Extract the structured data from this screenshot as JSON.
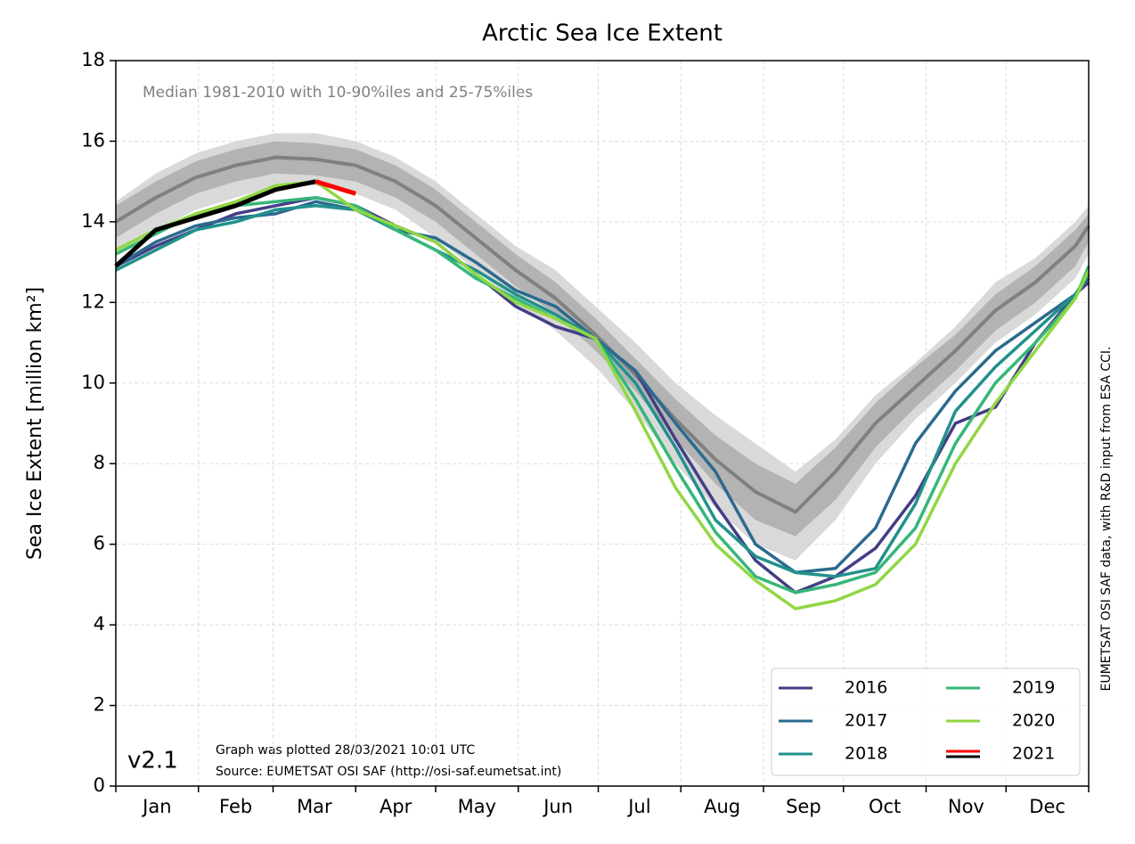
{
  "chart_data": {
    "type": "line",
    "title": "Arctic Sea Ice Extent",
    "subtitle": "Median 1981-2010 with 10-90%iles and 25-75%iles",
    "ylabel": "Sea Ice Extent [million km²]",
    "version": "v2.1",
    "notes": [
      "Graph was plotted 28/03/2021 10:01 UTC",
      "Source: EUMETSAT OSI SAF (http://osi-saf.eumetsat.int)"
    ],
    "credit": "EUMETSAT OSI SAF data, with R&D input from ESA CCI.",
    "x": [
      0,
      15,
      30,
      45,
      60,
      75,
      90,
      105,
      120,
      135,
      150,
      165,
      180,
      195,
      210,
      225,
      240,
      255,
      270,
      285,
      300,
      315,
      330,
      345,
      360,
      365
    ],
    "xlim": [
      0,
      365
    ],
    "xticks": [
      0,
      31,
      59,
      90,
      120,
      151,
      181,
      212,
      243,
      273,
      304,
      334,
      365
    ],
    "categories": [
      "Jan",
      "Feb",
      "Mar",
      "Apr",
      "May",
      "Jun",
      "Jul",
      "Aug",
      "Sep",
      "Oct",
      "Nov",
      "Dec"
    ],
    "ylim": [
      0,
      18
    ],
    "yticks": [
      0,
      2,
      4,
      6,
      8,
      10,
      12,
      14,
      16,
      18
    ],
    "grid": true,
    "legend": "lower right",
    "bands": [
      {
        "color": "#d9d9d9",
        "lower": [
          13.2,
          13.8,
          14.3,
          14.6,
          14.9,
          14.9,
          14.7,
          14.3,
          13.6,
          12.8,
          12.0,
          11.3,
          10.4,
          9.3,
          8.0,
          6.9,
          6.0,
          5.6,
          6.6,
          8.0,
          9.1,
          10.0,
          11.0,
          11.7,
          12.6,
          13.2
        ],
        "upper": [
          14.5,
          15.2,
          15.7,
          16.0,
          16.2,
          16.2,
          16.0,
          15.6,
          15.0,
          14.2,
          13.4,
          12.8,
          11.9,
          11.0,
          10.0,
          9.2,
          8.5,
          7.8,
          8.6,
          9.7,
          10.5,
          11.4,
          12.5,
          13.1,
          14.0,
          14.4
        ]
      },
      {
        "color": "#b3b3b3",
        "lower": [
          13.6,
          14.2,
          14.7,
          15.0,
          15.2,
          15.15,
          15.0,
          14.6,
          14.0,
          13.2,
          12.4,
          11.7,
          10.8,
          9.8,
          8.6,
          7.5,
          6.6,
          6.2,
          7.1,
          8.4,
          9.4,
          10.3,
          11.3,
          12.0,
          12.9,
          13.5
        ],
        "upper": [
          14.4,
          15.0,
          15.5,
          15.8,
          16.0,
          15.95,
          15.8,
          15.4,
          14.8,
          14.0,
          13.2,
          12.5,
          11.6,
          10.6,
          9.6,
          8.7,
          8.0,
          7.5,
          8.4,
          9.5,
          10.4,
          11.2,
          12.2,
          12.9,
          13.8,
          14.2
        ]
      }
    ],
    "median": {
      "color": "#808080",
      "values": [
        14.0,
        14.6,
        15.1,
        15.4,
        15.6,
        15.55,
        15.4,
        15.0,
        14.4,
        13.6,
        12.8,
        12.1,
        11.2,
        10.2,
        9.1,
        8.1,
        7.3,
        6.8,
        7.8,
        9.0,
        9.9,
        10.8,
        11.8,
        12.5,
        13.4,
        13.9
      ]
    },
    "series": [
      {
        "name": "2016",
        "color": "#433e85",
        "values": [
          12.9,
          13.4,
          13.8,
          14.2,
          14.4,
          14.6,
          14.4,
          13.9,
          13.5,
          12.7,
          11.9,
          11.4,
          11.1,
          10.3,
          8.6,
          7.0,
          5.6,
          4.8,
          5.2,
          5.9,
          7.2,
          9.0,
          9.4,
          11.0,
          12.2,
          12.5
        ]
      },
      {
        "name": "2017",
        "color": "#2c6a8e",
        "values": [
          12.9,
          13.5,
          13.9,
          14.1,
          14.2,
          14.5,
          14.3,
          13.8,
          13.6,
          13.0,
          12.3,
          11.9,
          11.1,
          10.3,
          9.0,
          7.8,
          6.0,
          5.3,
          5.4,
          6.4,
          8.5,
          9.8,
          10.8,
          11.5,
          12.2,
          12.6
        ]
      },
      {
        "name": "2018",
        "color": "#21918c",
        "values": [
          12.8,
          13.3,
          13.8,
          14.0,
          14.3,
          14.4,
          14.3,
          13.8,
          13.3,
          12.8,
          12.2,
          11.7,
          11.1,
          10.0,
          8.4,
          6.6,
          5.7,
          5.3,
          5.2,
          5.4,
          7.0,
          9.3,
          10.4,
          11.3,
          12.2,
          12.7
        ]
      },
      {
        "name": "2019",
        "color": "#35b779",
        "values": [
          13.2,
          13.7,
          14.2,
          14.4,
          14.5,
          14.6,
          14.4,
          13.8,
          13.3,
          12.6,
          12.1,
          11.6,
          11.1,
          9.6,
          7.9,
          6.3,
          5.2,
          4.8,
          5.0,
          5.3,
          6.4,
          8.5,
          10.0,
          11.0,
          12.1,
          12.9
        ]
      },
      {
        "name": "2020",
        "color": "#90d743",
        "values": [
          13.3,
          13.8,
          14.2,
          14.5,
          14.9,
          15.0,
          14.3,
          13.9,
          13.5,
          12.7,
          12.0,
          11.6,
          11.1,
          9.3,
          7.4,
          6.0,
          5.1,
          4.4,
          4.6,
          5.0,
          6.0,
          8.0,
          9.5,
          10.8,
          12.1,
          12.8
        ]
      },
      {
        "name": "2021",
        "color": "#000000",
        "highlight": {
          "color": "#ff0000",
          "from": 75
        },
        "values": [
          12.9,
          13.8,
          14.1,
          14.4,
          14.8,
          15.0,
          14.7,
          null,
          null,
          null,
          null,
          null,
          null,
          null,
          null,
          null,
          null,
          null,
          null,
          null,
          null,
          null,
          null,
          null,
          null,
          null
        ]
      }
    ]
  }
}
